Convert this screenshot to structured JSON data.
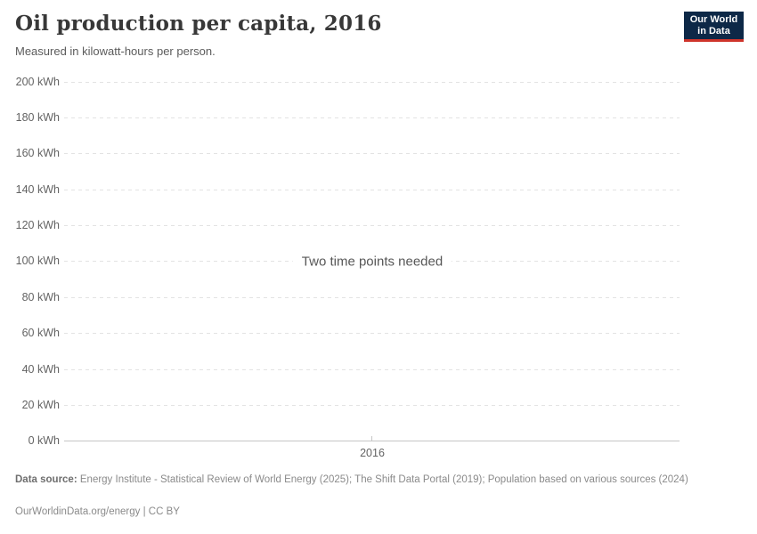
{
  "header": {
    "title": "Oil production per capita, 2016",
    "subtitle": "Measured in kilowatt-hours per person.",
    "logo": {
      "line1": "Our World",
      "line2": "in Data"
    }
  },
  "chart_data": {
    "type": "line",
    "title": "Oil production per capita, 2016",
    "subtitle": "Measured in kilowatt-hours per person.",
    "y_unit": "kWh",
    "ylim": [
      0,
      200
    ],
    "yticks": [
      0,
      20,
      40,
      60,
      80,
      100,
      120,
      140,
      160,
      180,
      200
    ],
    "x": [
      "2016"
    ],
    "series": [],
    "empty_message": "Two time points needed",
    "grid": "horizontal-dashed",
    "legend": "none"
  },
  "footer": {
    "datasource_label": "Data source:",
    "datasource_text": "Energy Institute - Statistical Review of World Energy (2025); The Shift Data Portal (2019); Population based on various sources (2024)",
    "license": "OurWorldinData.org/energy | CC BY"
  },
  "colors": {
    "logo_bg": "#0d2847",
    "logo_stripe": "#cf342b",
    "gridline": "#e3e3e3",
    "axis": "#c6c6c6",
    "title_text": "#383838",
    "muted_text": "#636363"
  }
}
